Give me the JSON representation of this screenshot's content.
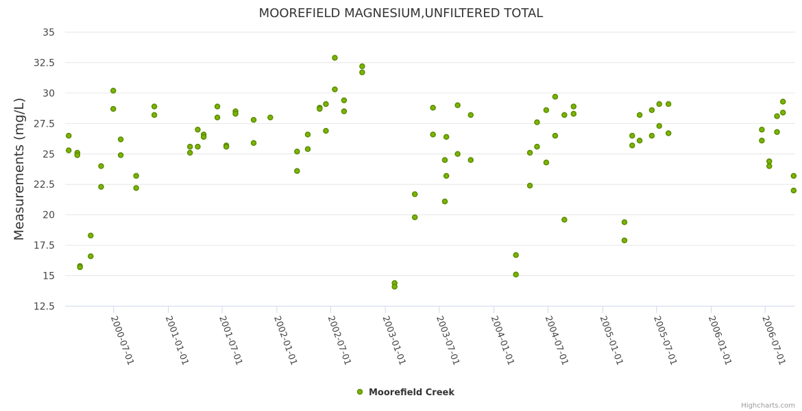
{
  "chart_data": {
    "type": "scatter",
    "title": "MOOREFIELD MAGNESIUM,UNFILTERED TOTAL",
    "ylabel": "Measurements (mg/L)",
    "xlabel": "",
    "ylim": [
      12.5,
      35
    ],
    "xlim": [
      "2000-01-20",
      "2006-10-10"
    ],
    "yticks": [
      12.5,
      15,
      17.5,
      20,
      22.5,
      25,
      27.5,
      30,
      32.5,
      35
    ],
    "yticks_labels": [
      "12.5",
      "15",
      "17.5",
      "20",
      "22.5",
      "25",
      "27.5",
      "30",
      "32.5",
      "35"
    ],
    "xticks": [
      "2000-07-01",
      "2001-01-01",
      "2001-07-01",
      "2002-01-01",
      "2002-07-01",
      "2003-01-01",
      "2003-07-01",
      "2004-01-01",
      "2004-07-01",
      "2005-01-01",
      "2005-07-01",
      "2006-01-01",
      "2006-07-01"
    ],
    "grid": true,
    "legend_position": "bottom-center",
    "credits": "Highcharts.com",
    "series": [
      {
        "name": "Moorefield Creek",
        "color": "#7cb500",
        "border_color": "#5a8a00",
        "points": [
          [
            "2000-02-01",
            26.5
          ],
          [
            "2000-02-01",
            25.3
          ],
          [
            "2000-03-01",
            25.1
          ],
          [
            "2000-03-01",
            24.9
          ],
          [
            "2000-03-10",
            15.8
          ],
          [
            "2000-03-10",
            15.7
          ],
          [
            "2000-04-15",
            18.3
          ],
          [
            "2000-04-15",
            16.6
          ],
          [
            "2000-05-20",
            24.0
          ],
          [
            "2000-05-20",
            22.3
          ],
          [
            "2000-06-30",
            30.2
          ],
          [
            "2000-06-30",
            28.7
          ],
          [
            "2000-07-25",
            26.2
          ],
          [
            "2000-07-25",
            24.9
          ],
          [
            "2000-09-15",
            23.2
          ],
          [
            "2000-09-15",
            22.2
          ],
          [
            "2000-11-15",
            28.9
          ],
          [
            "2000-11-15",
            28.2
          ],
          [
            "2001-03-15",
            25.6
          ],
          [
            "2001-03-15",
            25.1
          ],
          [
            "2001-04-10",
            27.0
          ],
          [
            "2001-04-10",
            25.6
          ],
          [
            "2001-04-30",
            26.6
          ],
          [
            "2001-04-30",
            26.4
          ],
          [
            "2001-06-15",
            28.9
          ],
          [
            "2001-06-15",
            28.0
          ],
          [
            "2001-07-15",
            25.7
          ],
          [
            "2001-07-15",
            25.6
          ],
          [
            "2001-08-15",
            28.5
          ],
          [
            "2001-08-15",
            28.3
          ],
          [
            "2001-10-15",
            27.8
          ],
          [
            "2001-10-15",
            25.9
          ],
          [
            "2001-12-10",
            28.0
          ],
          [
            "2002-03-10",
            25.2
          ],
          [
            "2002-03-10",
            23.6
          ],
          [
            "2002-04-15",
            26.6
          ],
          [
            "2002-04-15",
            25.4
          ],
          [
            "2002-05-25",
            28.8
          ],
          [
            "2002-05-25",
            28.7
          ],
          [
            "2002-06-15",
            29.1
          ],
          [
            "2002-06-15",
            26.9
          ],
          [
            "2002-07-15",
            32.9
          ],
          [
            "2002-07-15",
            30.3
          ],
          [
            "2002-08-15",
            29.4
          ],
          [
            "2002-08-15",
            28.5
          ],
          [
            "2002-10-15",
            32.2
          ],
          [
            "2002-10-15",
            31.7
          ],
          [
            "2003-02-01",
            14.4
          ],
          [
            "2003-02-01",
            14.1
          ],
          [
            "2003-04-10",
            21.7
          ],
          [
            "2003-04-10",
            19.8
          ],
          [
            "2003-06-10",
            28.8
          ],
          [
            "2003-06-10",
            26.6
          ],
          [
            "2003-07-20",
            24.5
          ],
          [
            "2003-07-20",
            21.1
          ],
          [
            "2003-07-25",
            26.4
          ],
          [
            "2003-07-25",
            23.2
          ],
          [
            "2003-09-01",
            29.0
          ],
          [
            "2003-09-01",
            25.0
          ],
          [
            "2003-10-15",
            28.2
          ],
          [
            "2003-10-15",
            24.5
          ],
          [
            "2004-03-15",
            16.7
          ],
          [
            "2004-03-15",
            15.1
          ],
          [
            "2004-05-01",
            25.1
          ],
          [
            "2004-05-01",
            22.4
          ],
          [
            "2004-05-25",
            27.6
          ],
          [
            "2004-05-25",
            25.6
          ],
          [
            "2004-06-25",
            28.6
          ],
          [
            "2004-06-25",
            24.3
          ],
          [
            "2004-07-25",
            29.7
          ],
          [
            "2004-07-25",
            26.5
          ],
          [
            "2004-08-25",
            28.2
          ],
          [
            "2004-08-25",
            19.6
          ],
          [
            "2004-09-25",
            28.9
          ],
          [
            "2004-09-25",
            28.3
          ],
          [
            "2005-03-15",
            19.4
          ],
          [
            "2005-03-15",
            17.9
          ],
          [
            "2005-04-10",
            26.5
          ],
          [
            "2005-04-10",
            25.7
          ],
          [
            "2005-05-05",
            28.2
          ],
          [
            "2005-05-05",
            26.1
          ],
          [
            "2005-06-15",
            28.6
          ],
          [
            "2005-06-15",
            26.5
          ],
          [
            "2005-07-10",
            29.1
          ],
          [
            "2005-07-10",
            27.3
          ],
          [
            "2005-08-10",
            29.1
          ],
          [
            "2005-08-10",
            26.7
          ],
          [
            "2006-06-20",
            27.0
          ],
          [
            "2006-06-20",
            26.1
          ],
          [
            "2006-07-15",
            24.4
          ],
          [
            "2006-07-15",
            24.0
          ],
          [
            "2006-08-10",
            28.1
          ],
          [
            "2006-08-10",
            26.8
          ],
          [
            "2006-08-30",
            29.3
          ],
          [
            "2006-08-30",
            28.4
          ],
          [
            "2006-10-05",
            23.2
          ],
          [
            "2006-10-05",
            22.0
          ]
        ]
      }
    ]
  }
}
